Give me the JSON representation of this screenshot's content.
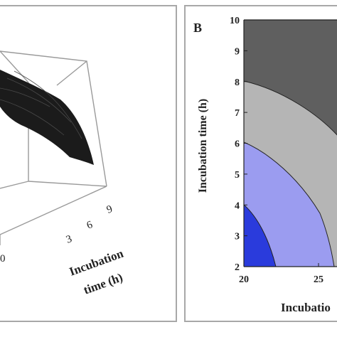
{
  "chart_data": [
    {
      "type": "surface",
      "panel_label": "",
      "ylabel_line1": "Incubation",
      "ylabel_line2": "time (h)",
      "y_ticks": [
        "3",
        "6",
        "9"
      ],
      "x_ticks": [
        "0"
      ]
    },
    {
      "type": "contour",
      "panel_label": "B",
      "xlabel": "Incubatio",
      "ylabel": "Incubation time (h)",
      "x_ticks": [
        "20",
        "25"
      ],
      "y_ticks": [
        "2",
        "3",
        "4",
        "5",
        "6",
        "7",
        "8",
        "9",
        "10"
      ],
      "xlim": [
        20,
        30
      ],
      "ylim": [
        2,
        10
      ],
      "colors": {
        "darkest": "#5f5f5f",
        "mid_gray": "#b5b5b5",
        "light_blue": "#9b9cf0",
        "blue": "#2a3bdc"
      }
    }
  ]
}
